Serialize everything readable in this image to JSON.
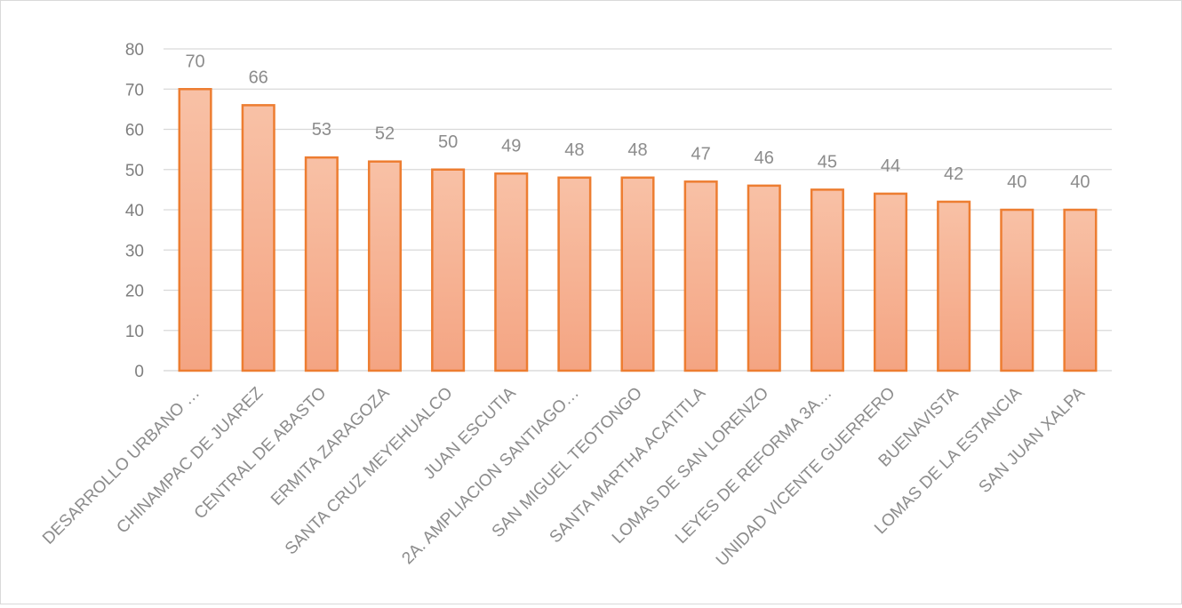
{
  "chart_data": {
    "type": "bar",
    "title": "",
    "xlabel": "",
    "ylabel": "",
    "categories": [
      "DESARROLLO URBANO …",
      "CHINAMPAC DE JUAREZ",
      "CENTRAL DE ABASTO",
      "ERMITA ZARAGOZA",
      "SANTA CRUZ MEYEHUALCO",
      "JUAN ESCUTIA",
      "2A. AMPLIACION SANTIAGO…",
      "SAN MIGUEL TEOTONGO",
      "SANTA MARTHA ACATITLA",
      "LOMAS DE SAN LORENZO",
      "LEYES DE REFORMA 3A…",
      "UNIDAD VICENTE GUERRERO",
      "BUENAVISTA",
      "LOMAS DE LA ESTANCIA",
      "SAN JUAN XALPA"
    ],
    "values": [
      70,
      66,
      53,
      52,
      50,
      49,
      48,
      48,
      47,
      46,
      45,
      44,
      42,
      40,
      40
    ],
    "ylim": [
      0,
      80
    ],
    "yticks": [
      0,
      10,
      20,
      30,
      40,
      50,
      60,
      70,
      80
    ],
    "grid": true,
    "legend": "none",
    "colors": {
      "bar_fill_top": "#f8c1a6",
      "bar_fill_bottom": "#f4a482",
      "bar_stroke": "#ed7d31",
      "gridline": "#d9d9d9",
      "tick_text": "#7f7f7f",
      "label_text": "#8c8c8c"
    }
  }
}
